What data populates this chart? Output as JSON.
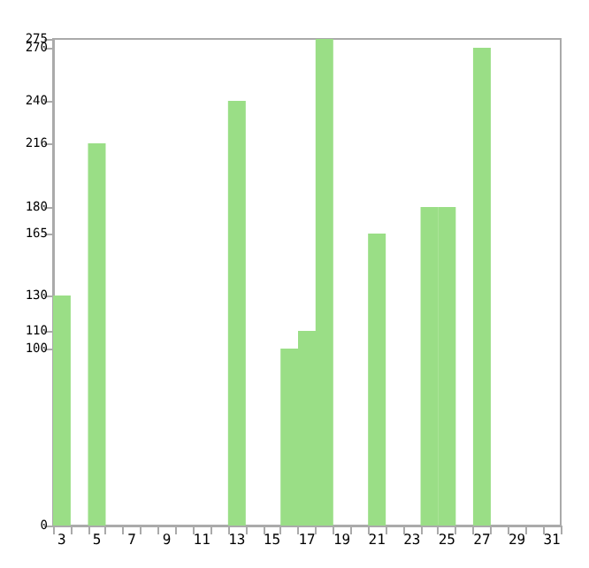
{
  "chart_data": {
    "type": "bar",
    "categories": [
      "3",
      null,
      "5",
      null,
      "7",
      null,
      "9",
      null,
      "11",
      null,
      "13",
      null,
      "15",
      null,
      "17",
      null,
      "19",
      null,
      "21",
      null,
      "23",
      null,
      "25",
      null,
      "27",
      null,
      "29",
      null,
      "31"
    ],
    "values": [
      130,
      0,
      216,
      0,
      0,
      0,
      0,
      0,
      0,
      0,
      240,
      0,
      0,
      100,
      110,
      275,
      0,
      0,
      165,
      0,
      0,
      180,
      180,
      0,
      270,
      0,
      0,
      0,
      0
    ],
    "color": "#9ade86",
    "ylim": [
      0,
      275
    ],
    "yticks": [
      0,
      100,
      110,
      130,
      165,
      180,
      216,
      240,
      270,
      275
    ],
    "grid": false
  }
}
